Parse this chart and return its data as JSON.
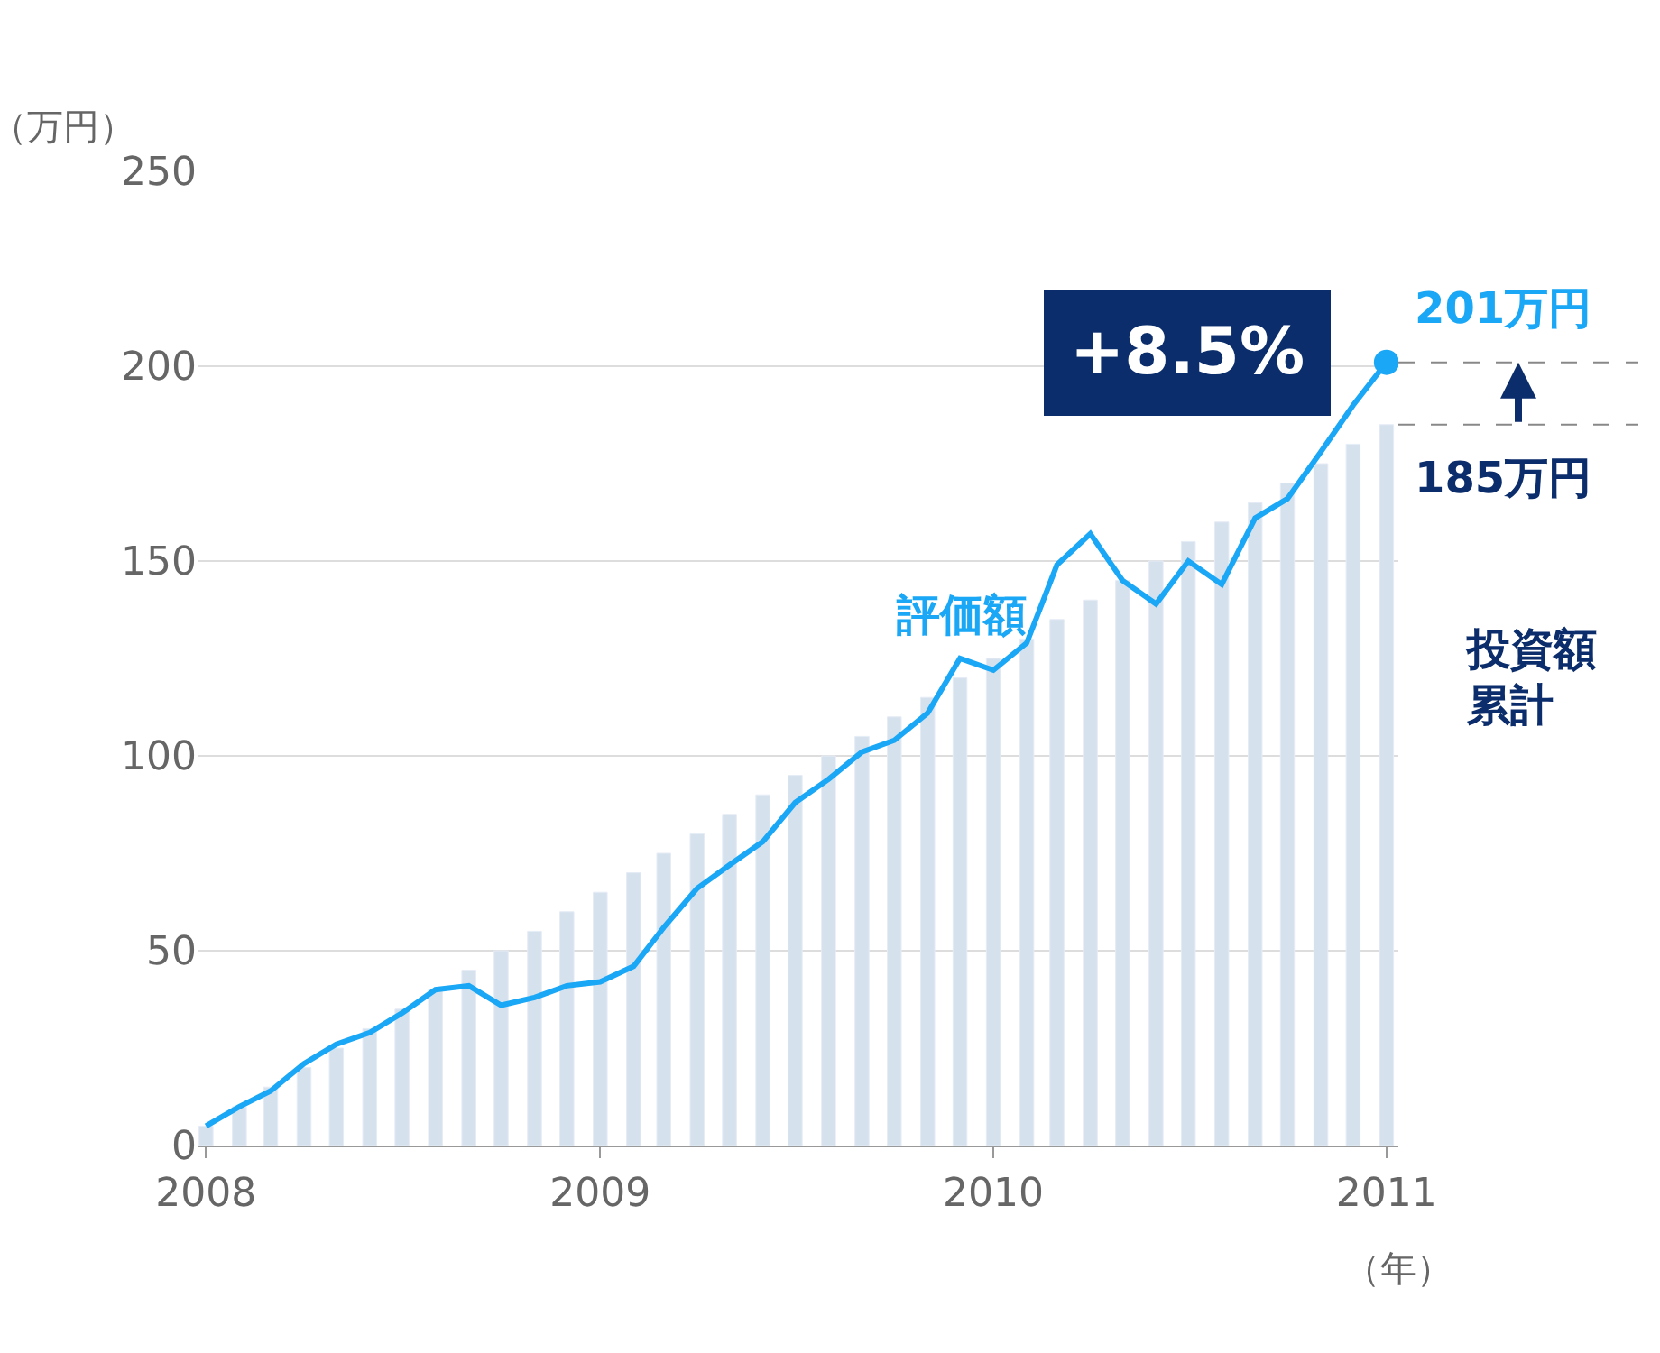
{
  "chart_data": {
    "type": "bar",
    "ylabel": "（万円）",
    "xlabel": "（年）",
    "x": [
      "2008-01",
      "2008-02",
      "2008-03",
      "2008-04",
      "2008-05",
      "2008-06",
      "2008-07",
      "2008-08",
      "2008-09",
      "2008-10",
      "2008-11",
      "2008-12",
      "2009-01",
      "2009-02",
      "2009-03",
      "2009-04",
      "2009-05",
      "2009-06",
      "2009-07",
      "2009-08",
      "2009-09",
      "2009-10",
      "2009-11",
      "2009-12",
      "2010-01",
      "2010-02",
      "2010-03",
      "2010-04",
      "2010-05",
      "2010-06",
      "2010-07",
      "2010-08",
      "2010-09",
      "2010-10",
      "2010-11",
      "2010-12",
      "2011-01"
    ],
    "series": [
      {
        "name": "投資額累計",
        "color": "#d6e1ee",
        "values": [
          5,
          10,
          15,
          20,
          25,
          30,
          35,
          40,
          45,
          50,
          55,
          60,
          65,
          70,
          75,
          80,
          85,
          90,
          95,
          100,
          105,
          110,
          115,
          120,
          125,
          130,
          135,
          140,
          145,
          150,
          155,
          160,
          165,
          170,
          175,
          180,
          185
        ]
      },
      {
        "name": "評価額",
        "type": "line",
        "color": "#1aa7f5",
        "values": [
          5,
          10,
          14,
          21,
          26,
          29,
          34,
          40,
          41,
          36,
          38,
          41,
          42,
          46,
          56,
          66,
          72,
          78,
          88,
          94,
          101,
          104,
          111,
          125,
          122,
          129,
          149,
          157,
          145,
          139,
          150,
          144,
          161,
          166,
          178,
          190,
          201
        ]
      }
    ],
    "xlim": [
      "2007-12-25",
      "2011-01-12"
    ],
    "xticks": [
      {
        "value": "2008-01-01",
        "label": "2008"
      },
      {
        "value": "2009-01-01",
        "label": "2009"
      },
      {
        "value": "2010-01-01",
        "label": "2010"
      },
      {
        "value": "2011-01-01",
        "label": "2011"
      }
    ],
    "ylim": [
      0,
      250
    ],
    "yticks": [
      0,
      50,
      100,
      150,
      200,
      250
    ],
    "grid": "y",
    "marker": "none",
    "line_style": "solid",
    "ref_lines": [
      {
        "axis": "y",
        "value": 201,
        "label": "201万円",
        "color": "#888888",
        "line_style": "dashed"
      },
      {
        "axis": "y",
        "value": 185,
        "label": "185万円",
        "color": "#888888",
        "line_style": "dashed"
      }
    ],
    "annotations": [
      {
        "text": "+8.5%",
        "x": "2011-01",
        "y": 201
      }
    ]
  }
}
